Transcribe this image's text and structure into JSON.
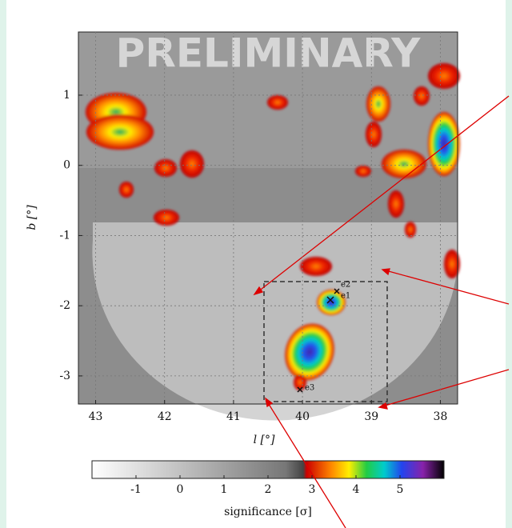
{
  "chart_data": {
    "type": "heatmap",
    "watermark": "PRELIMINARY",
    "x_label": "l [°]",
    "y_label": "b [°]",
    "xlim": [
      43.25,
      37.75
    ],
    "xticks": [
      43,
      42,
      41,
      40,
      39,
      38
    ],
    "ylim": [
      -3.4,
      1.9
    ],
    "yticks": [
      1,
      0,
      -1,
      -2,
      -3
    ],
    "grid": true,
    "markers": [
      "e2",
      "e1",
      "e3"
    ],
    "colorbar": {
      "label": "significance [σ]",
      "clim": [
        -2,
        6
      ],
      "ticks": [
        -1,
        0,
        1,
        2,
        3,
        4,
        5
      ]
    }
  }
}
